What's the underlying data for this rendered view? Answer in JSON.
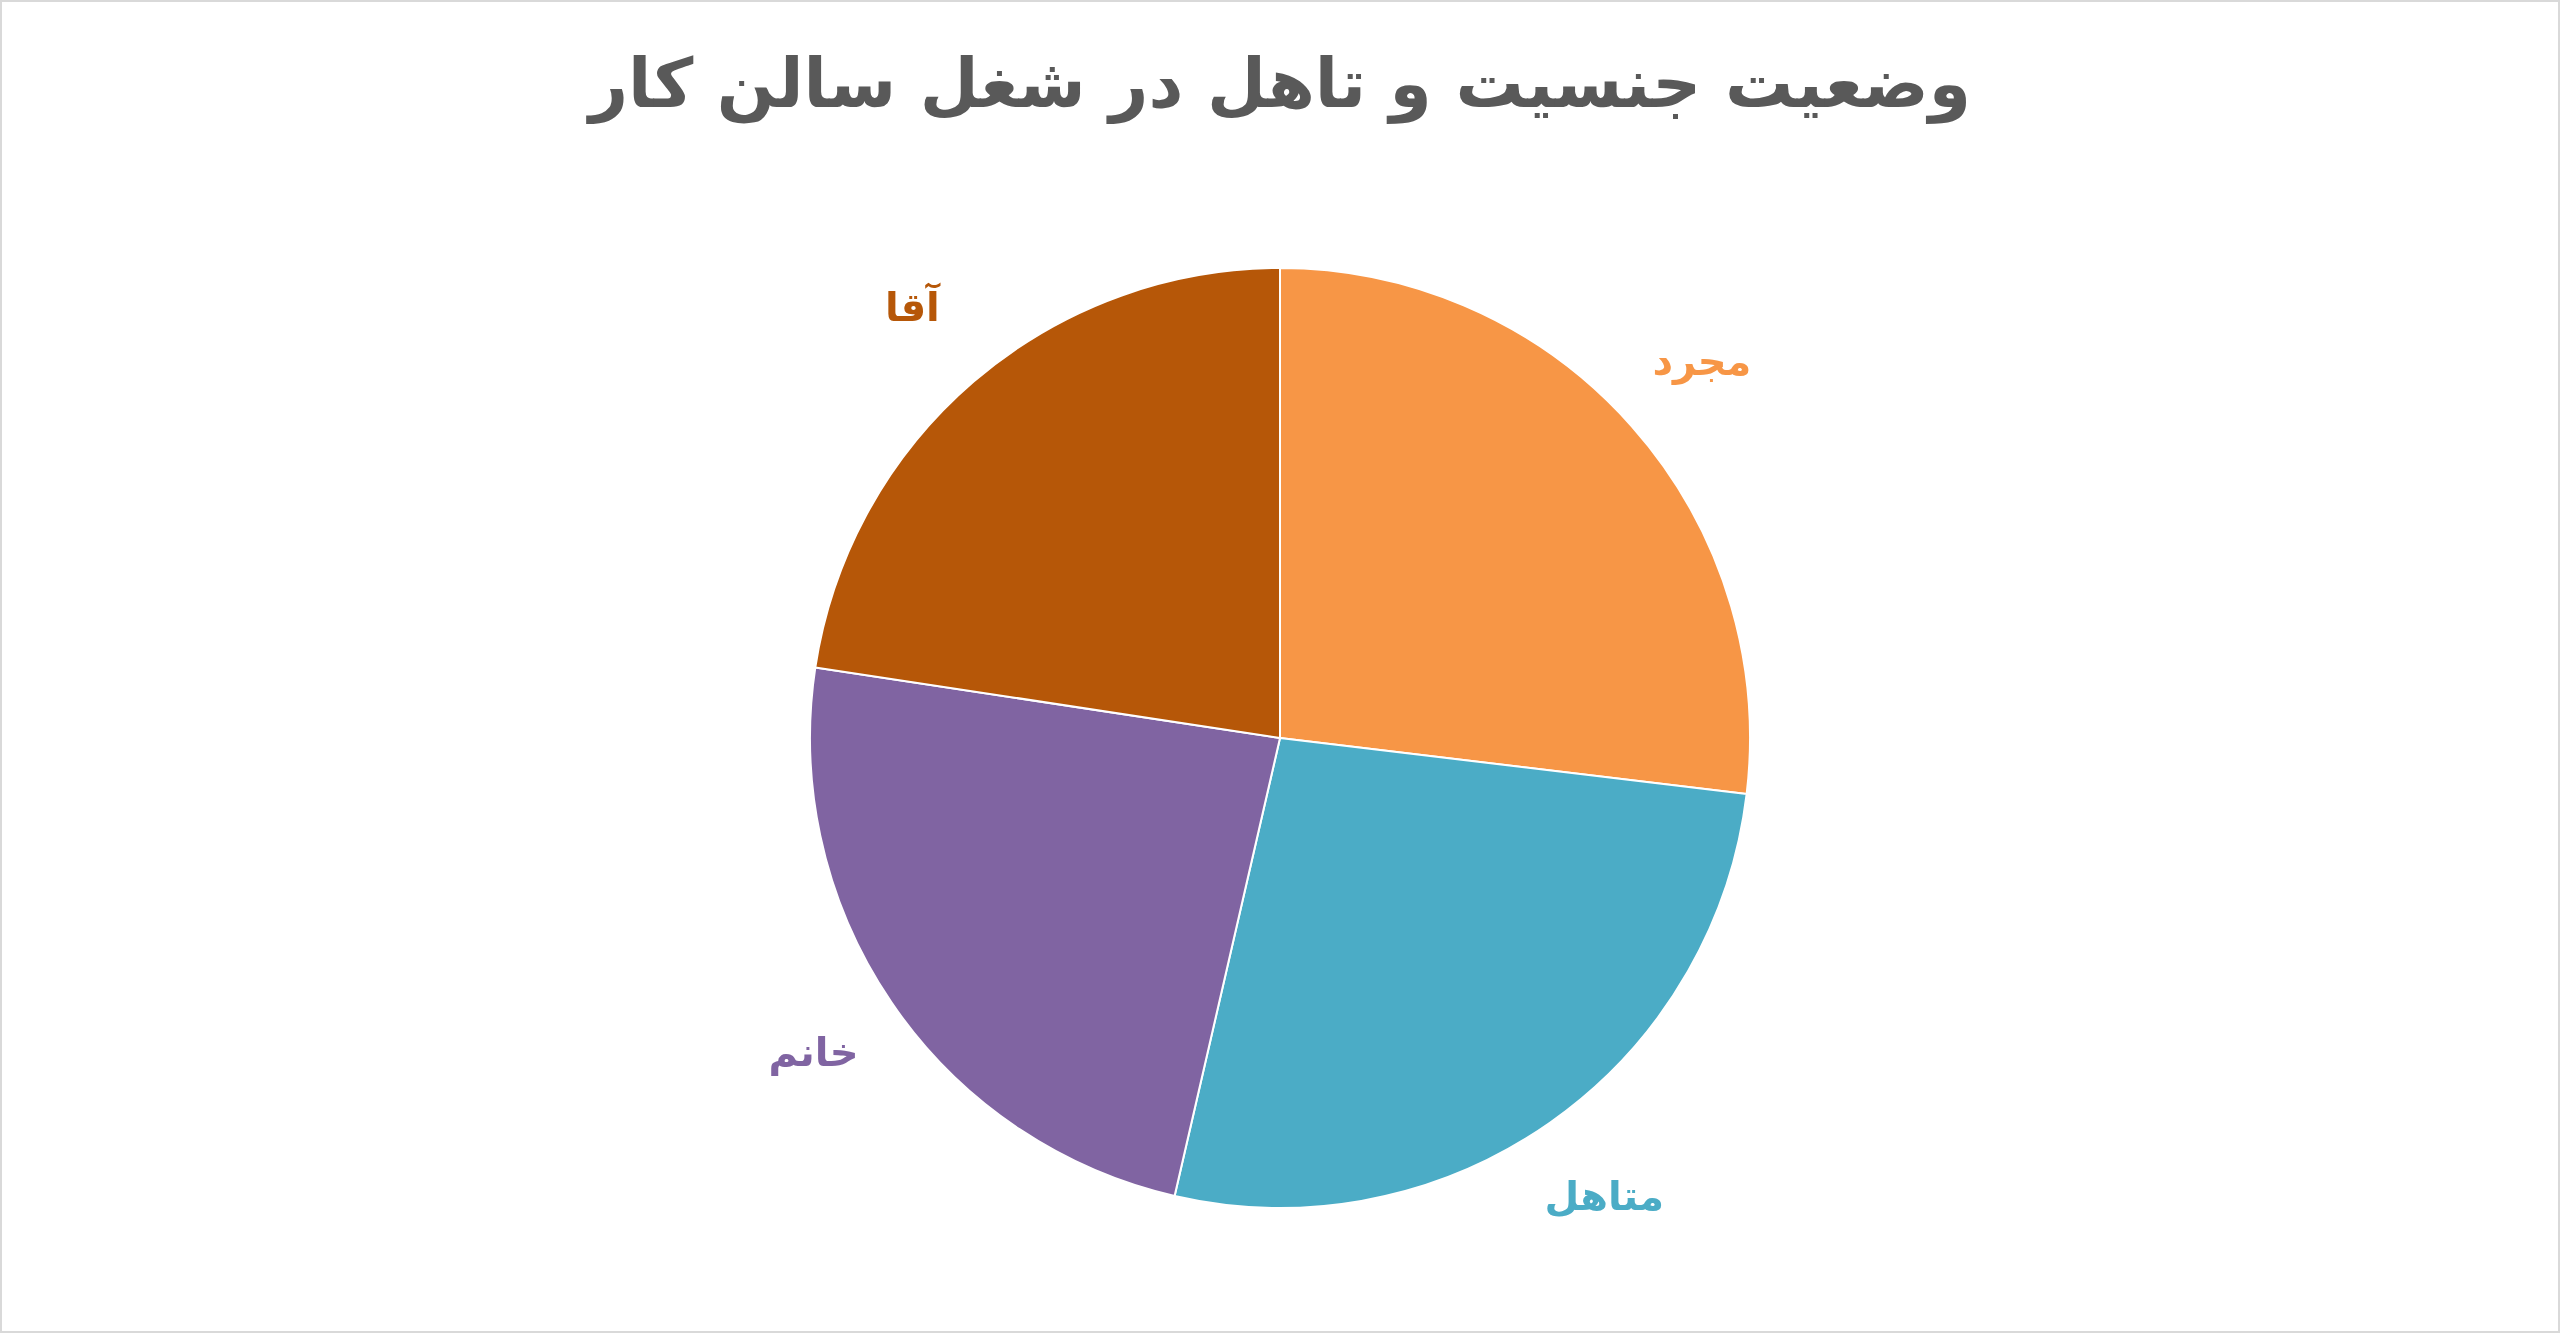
{
  "chart_data": {
    "type": "pie",
    "title": "وضعیت جنسیت و تاهل در شغل سالن کار",
    "categories": [
      "مجرد",
      "متاهل",
      "خانم",
      "آقا"
    ],
    "values": [
      26.9,
      26.7,
      23.8,
      22.6
    ],
    "colors": [
      "#f79646",
      "#4bacc6",
      "#8064a2",
      "#b65708"
    ]
  }
}
